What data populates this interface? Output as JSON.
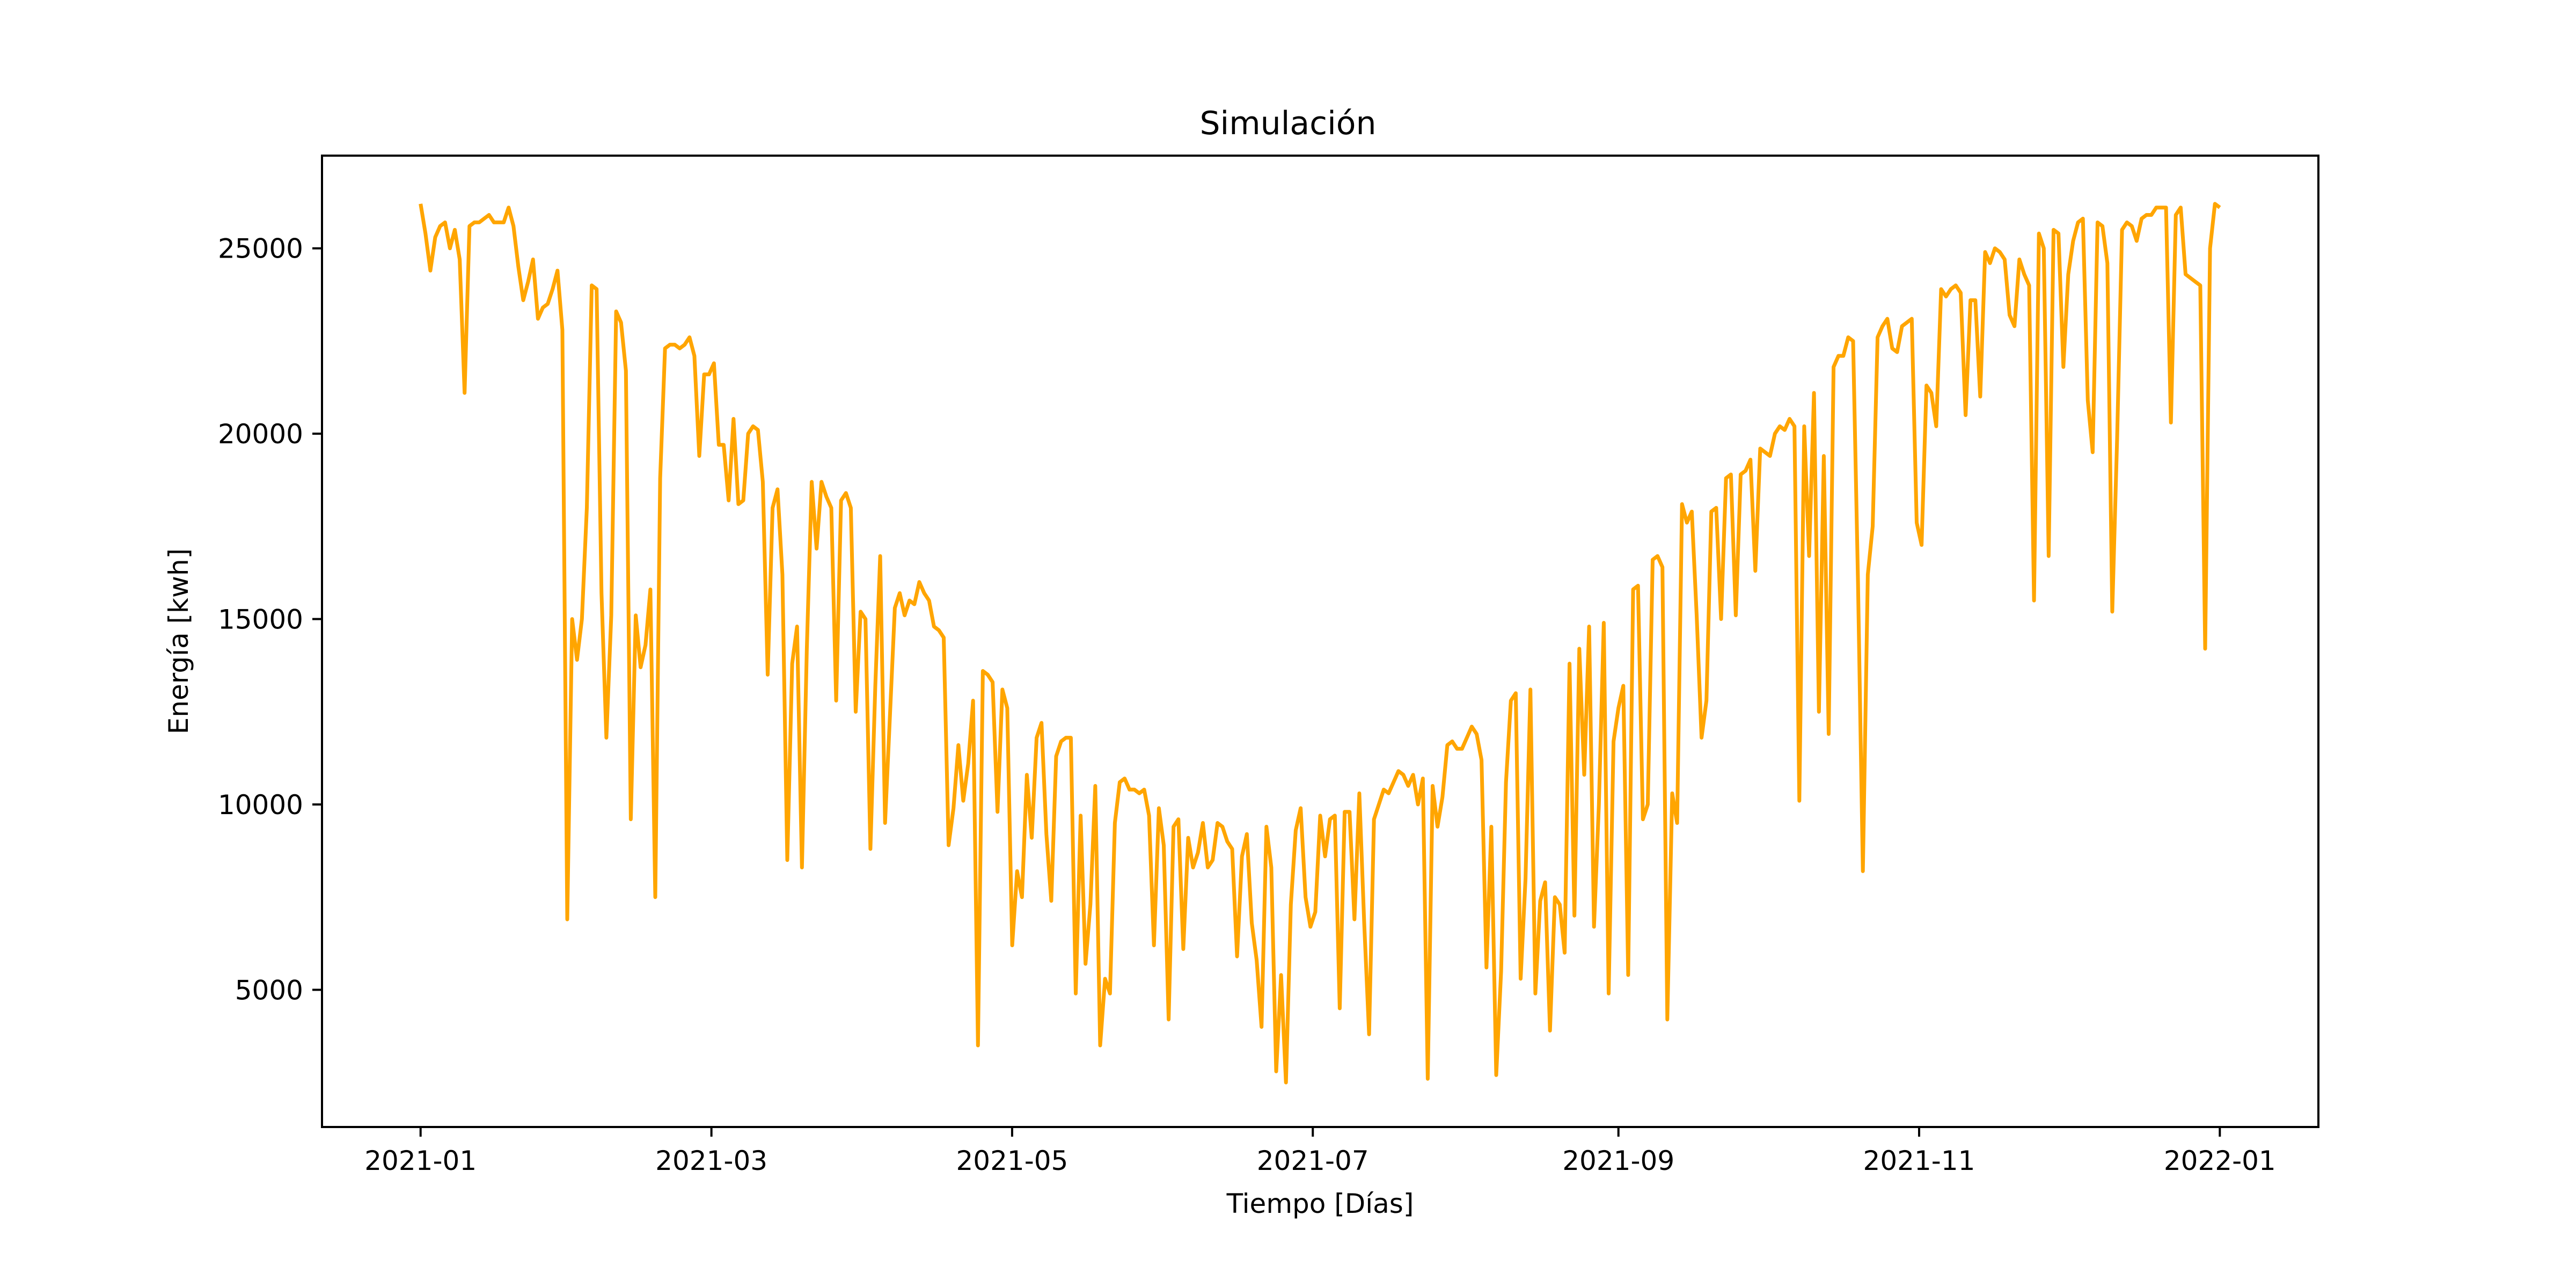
{
  "chart_data": {
    "type": "line",
    "title": "Simulación",
    "xlabel": "Tiempo [Días]",
    "ylabel": "Energía [kwh]",
    "x_start": "2021-01-01",
    "x_end": "2022-01-01",
    "xlim": [
      "2020-12-12",
      "2022-01-21"
    ],
    "ylim": [
      1300,
      27500
    ],
    "xticks": [
      "2021-01",
      "2021-03",
      "2021-05",
      "2021-07",
      "2021-09",
      "2021-11",
      "2022-01"
    ],
    "yticks": [
      5000,
      10000,
      15000,
      20000,
      25000
    ],
    "grid": false,
    "line_color": "#ffa500",
    "series": [
      {
        "values": [
          26200,
          25400,
          24400,
          25300,
          25600,
          25700,
          25000,
          25500,
          24700,
          21100,
          25600,
          25700,
          25700,
          25800,
          25900,
          25700,
          25700,
          25700,
          26100,
          25600,
          24500,
          23600,
          24100,
          24700,
          23100,
          23400,
          23500,
          23900,
          24400,
          22800,
          6900,
          15000,
          13900,
          15000,
          18000,
          24000,
          23900,
          15700,
          11800,
          15100,
          23300,
          23000,
          21700,
          9600,
          15100,
          13700,
          14300,
          15800,
          7500,
          18800,
          22300,
          22400,
          22400,
          22300,
          22400,
          22600,
          22100,
          19400,
          21600,
          21600,
          21900,
          19700,
          19700,
          18200,
          20400,
          18100,
          18200,
          20000,
          20200,
          20100,
          18700,
          13500,
          18000,
          18500,
          16200,
          8500,
          13800,
          14800,
          8300,
          14200,
          18700,
          16900,
          18700,
          18300,
          18000,
          12800,
          18200,
          18400,
          18000,
          12500,
          15200,
          15000,
          8800,
          13200,
          16700,
          9500,
          12400,
          15300,
          15700,
          15100,
          15500,
          15400,
          16000,
          15700,
          15500,
          14800,
          14700,
          14500,
          8900,
          9900,
          11600,
          10100,
          11100,
          12800,
          3500,
          13600,
          13500,
          13300,
          9800,
          13100,
          12600,
          6200,
          8200,
          7500,
          10800,
          9100,
          11800,
          12200,
          9200,
          7400,
          11300,
          11700,
          11800,
          11800,
          4900,
          9700,
          5700,
          7300,
          10500,
          3500,
          5300,
          4900,
          9500,
          10600,
          10700,
          10400,
          10400,
          10300,
          10400,
          9700,
          6200,
          9900,
          8900,
          4200,
          9400,
          9600,
          6100,
          9100,
          8300,
          8700,
          9500,
          8300,
          8500,
          9500,
          9400,
          9000,
          8800,
          5900,
          8600,
          9200,
          6800,
          5800,
          4000,
          9400,
          8300,
          2800,
          5400,
          2500,
          7300,
          9300,
          9900,
          7500,
          6700,
          7100,
          9700,
          8600,
          9600,
          9700,
          4500,
          9800,
          9800,
          6900,
          10300,
          6800,
          3800,
          9600,
          10000,
          10400,
          10300,
          10600,
          10900,
          10800,
          10500,
          10800,
          10000,
          10700,
          2600,
          10500,
          9400,
          10200,
          11600,
          11700,
          11500,
          11500,
          11800,
          12100,
          11900,
          11200,
          5600,
          9400,
          2700,
          5500,
          10600,
          12800,
          13000,
          5300,
          8000,
          13100,
          4900,
          7400,
          7900,
          3900,
          7500,
          7300,
          6000,
          13800,
          7000,
          14200,
          10800,
          14800,
          6700,
          10000,
          14900,
          4900,
          11700,
          12600,
          13200,
          5400,
          15800,
          15900,
          9600,
          10000,
          16600,
          16700,
          16400,
          4200,
          10300,
          9500,
          18100,
          17600,
          17900,
          15100,
          11800,
          12800,
          17900,
          18000,
          15000,
          18800,
          18900,
          15100,
          18900,
          19000,
          19300,
          16300,
          19600,
          19500,
          19400,
          20000,
          20200,
          20100,
          20400,
          20200,
          10100,
          20200,
          16700,
          21100,
          12500,
          19400,
          11900,
          21800,
          22100,
          22100,
          22600,
          22500,
          16000,
          8200,
          16200,
          17500,
          22600,
          22900,
          23100,
          22300,
          22200,
          22900,
          23000,
          23100,
          17600,
          17000,
          21300,
          21100,
          20200,
          23900,
          23700,
          23900,
          24000,
          23800,
          20500,
          23600,
          23600,
          21000,
          24900,
          24600,
          25000,
          24900,
          24700,
          23200,
          22900,
          24700,
          24300,
          24000,
          15500,
          25400,
          25000,
          16700,
          25500,
          25400,
          21800,
          24300,
          25200,
          25700,
          25800,
          20900,
          19500,
          25700,
          25600,
          24600,
          15200,
          19900,
          25500,
          25700,
          25600,
          25200,
          25800,
          25900,
          25900,
          26100,
          26100,
          26100,
          20300,
          25900,
          26100,
          24300,
          24200,
          24100,
          24000,
          14200,
          25000,
          26200,
          26100
        ]
      }
    ]
  }
}
